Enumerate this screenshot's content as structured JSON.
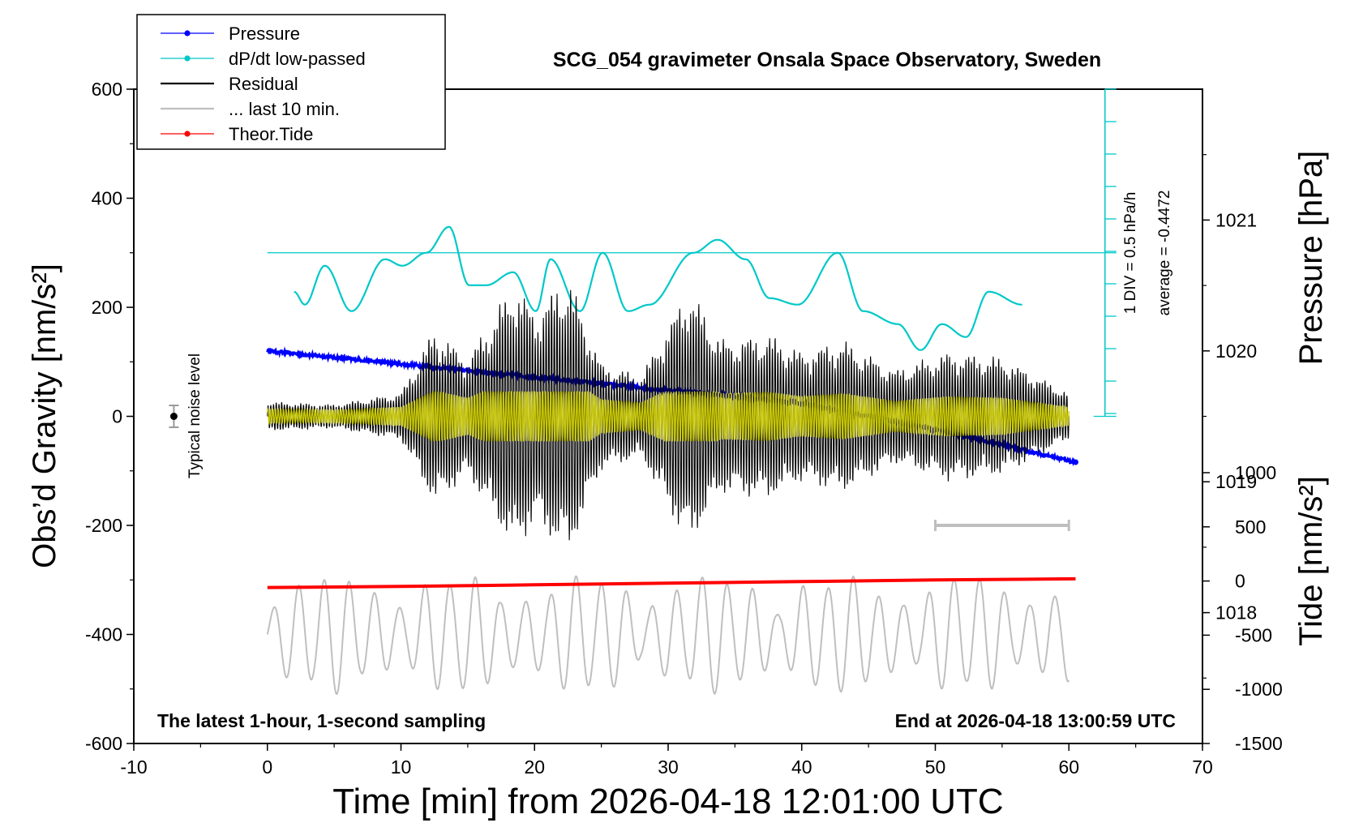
{
  "chart_data": {
    "type": "line",
    "title": "SCG_054 gravimeter Onsala Space Observatory, Sweden",
    "xlabel": "Time [min] from 2026-04-18 12:01:00 UTC",
    "ylabel": "Obs’d Gravity [nm/s²]",
    "xlim": [
      -10,
      70
    ],
    "ylim": [
      -600,
      600
    ],
    "x_ticks": [
      "-10",
      "0",
      "10",
      "20",
      "30",
      "40",
      "50",
      "60",
      "70"
    ],
    "y_ticks": [
      "600",
      "400",
      "200",
      "0",
      "-200",
      "-400",
      "-600"
    ],
    "pressure_axis": {
      "label_main": "Pressure",
      "label_unit": "[hPa]",
      "ticks": [
        "1021",
        "1020",
        "1019",
        "1018"
      ],
      "range": [
        1017.0,
        1022.0
      ]
    },
    "tide_axis": {
      "label_main": "Tide",
      "label_unit": "[nm/s²]",
      "ticks": [
        "1000",
        "500",
        "0",
        "-500",
        "-1000",
        "-1500"
      ],
      "range": [
        -1500,
        1000
      ]
    },
    "dpdt_scale": {
      "label_div": "1 DIV = 0.5 hPa/h",
      "label_avg": "average = -0.4472"
    },
    "noise_label": "Typical noise level",
    "noise_level": 20,
    "footer_left": "The latest 1-hour, 1-second sampling",
    "footer_right": "End at 2026-04-18 13:00:59 UTC",
    "legend": [
      {
        "label": "Pressure",
        "color": "#0000ff",
        "marker": true
      },
      {
        "label": "dP/dt low-passed",
        "color": "#00c8c8",
        "marker": true
      },
      {
        "label": "Residual",
        "color": "#000000",
        "marker": false
      },
      {
        "label": "... last 10 min.",
        "color": "#bfbfbf",
        "marker": false
      },
      {
        "label": "Theor.Tide",
        "color": "#ff0000",
        "marker": true
      }
    ],
    "series": [
      {
        "name": "Pressure",
        "unit": "hPa",
        "x": [
          0,
          10,
          20,
          30,
          40,
          50,
          60.5
        ],
        "values": [
          1020.0,
          1019.9,
          1019.8,
          1019.7,
          1019.6,
          1019.4,
          1019.15
        ]
      },
      {
        "name": "dP/dt low-passed",
        "x": [
          2,
          2.8,
          4.3,
          6.3,
          8.8,
          10.1,
          11.9,
          13.6,
          15.1,
          16.4,
          18.4,
          20.1,
          21.2,
          23.4,
          25.1,
          27.0,
          28.6,
          31.9,
          33.7,
          35.8,
          37.6,
          39.7,
          42.7,
          44.6,
          47.2,
          48.9,
          50.5,
          52.3,
          54.0,
          56.5
        ],
        "values": [
          -0.6,
          -0.8,
          -0.2,
          -0.9,
          -0.1,
          -0.2,
          0.0,
          0.4,
          -0.5,
          -0.5,
          -0.3,
          -0.9,
          -0.1,
          -0.9,
          0.0,
          -0.9,
          -0.8,
          0.0,
          0.2,
          -0.1,
          -0.7,
          -0.8,
          0.0,
          -0.9,
          -1.1,
          -1.5,
          -1.1,
          -1.3,
          -0.6,
          -0.8
        ]
      },
      {
        "name": "Residual",
        "x": [
          0,
          5,
          10,
          12.5,
          15,
          18.5,
          20,
          22.5,
          25,
          28,
          31.5,
          34,
          37.5,
          40,
          43,
          47,
          51,
          55,
          60
        ],
        "values": [
          25,
          20,
          40,
          150,
          100,
          230,
          180,
          240,
          90,
          70,
          220,
          130,
          140,
          110,
          130,
          80,
          110,
          100,
          40
        ]
      },
      {
        "name": "... last 10 min.",
        "x": [
          50,
          60
        ],
        "values": [
          -200,
          -200
        ]
      },
      {
        "name": "Theor.Tide",
        "unit": "nm/s²",
        "x": [
          0,
          10,
          20,
          30,
          40,
          50,
          60.5
        ],
        "values": [
          -60,
          -50,
          -35,
          -20,
          -5,
          10,
          20
        ]
      }
    ]
  }
}
